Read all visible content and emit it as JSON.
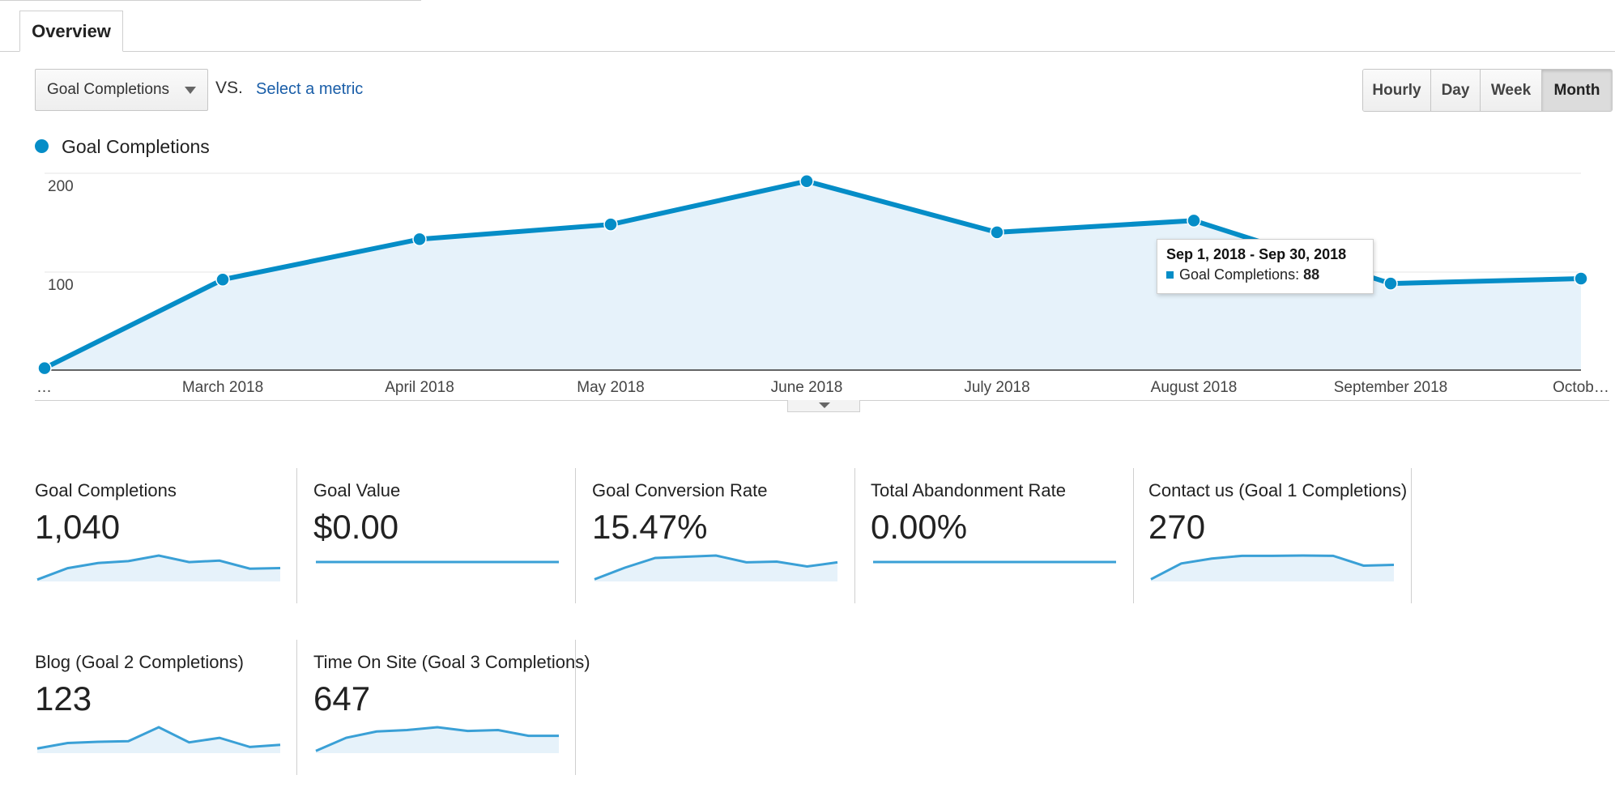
{
  "tabs": {
    "overview_label": "Overview"
  },
  "metric_bar": {
    "selected_metric": "Goal Completions",
    "vs_label": "VS.",
    "select_metric_link": "Select a metric"
  },
  "granularity": {
    "options": [
      "Hourly",
      "Day",
      "Week",
      "Month"
    ],
    "active": "Month"
  },
  "legend": {
    "label": "Goal Completions",
    "color": "#058dc7"
  },
  "chart_data": {
    "type": "area",
    "series": [
      {
        "name": "Goal Completions",
        "values": [
          2,
          92,
          133,
          148,
          192,
          140,
          152,
          88,
          93
        ]
      }
    ],
    "x_labels": [
      "…",
      "March 2018",
      "April 2018",
      "May 2018",
      "June 2018",
      "July 2018",
      "August 2018",
      "September 2018",
      "Octob…"
    ],
    "y_ticks": [
      "200",
      "100"
    ],
    "ylim": [
      0,
      200
    ],
    "line_color": "#058dc7",
    "fill_color": "#e6f2fa",
    "grid": true
  },
  "tooltip": {
    "title": "Sep 1, 2018 - Sep 30, 2018",
    "metric": "Goal Completions:",
    "value": "88"
  },
  "scorecards": [
    {
      "title": "Goal Completions",
      "value": "1,040",
      "spark": [
        2,
        92,
        133,
        148,
        192,
        140,
        152,
        88,
        93
      ]
    },
    {
      "title": "Goal Value",
      "value": "$0.00",
      "spark": [
        1,
        1,
        1,
        1,
        1,
        1,
        1,
        1,
        1
      ]
    },
    {
      "title": "Goal Conversion Rate",
      "value": "15.47%",
      "spark": [
        2,
        50,
        90,
        95,
        100,
        72,
        75,
        55,
        72
      ]
    },
    {
      "title": "Total Abandonment Rate",
      "value": "0.00%",
      "spark": [
        1,
        1,
        1,
        1,
        1,
        1,
        1,
        1,
        1
      ]
    },
    {
      "title": "Contact us (Goal 1 Completions)",
      "value": "270",
      "spark": [
        2,
        60,
        78,
        88,
        88,
        89,
        88,
        52,
        55
      ]
    },
    {
      "title": "Blog (Goal 2 Completions)",
      "value": "123",
      "spark": [
        10,
        28,
        32,
        34,
        80,
        30,
        45,
        15,
        22
      ]
    },
    {
      "title": "Time On Site (Goal 3 Completions)",
      "value": "647",
      "spark": [
        2,
        48,
        70,
        75,
        85,
        72,
        75,
        55,
        55
      ]
    }
  ]
}
